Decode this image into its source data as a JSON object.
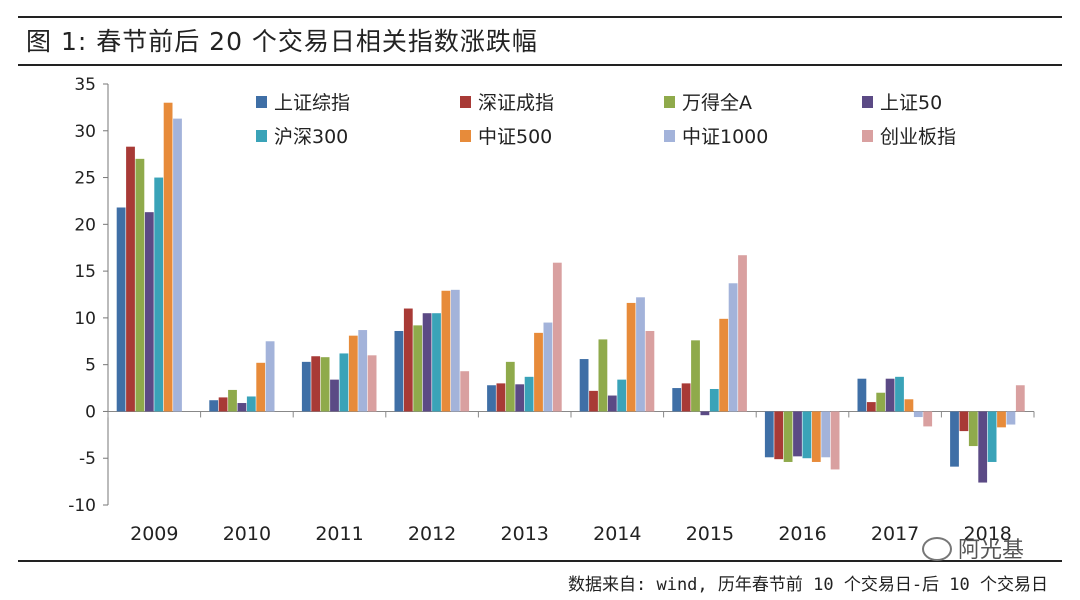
{
  "header": {
    "title": "图 1: 春节前后 20 个交易日相关指数涨跌幅"
  },
  "footer": {
    "source": "数据来自: wind, 历年春节前 10 个交易日-后 10 个交易日",
    "watermark": "阿光基"
  },
  "chart_data": {
    "type": "bar",
    "title": "",
    "xlabel": "",
    "ylabel": "",
    "ylim": [
      -10,
      35
    ],
    "yticks": [
      -10,
      -5,
      0,
      5,
      10,
      15,
      20,
      25,
      30,
      35
    ],
    "grid": false,
    "legend_position": "top-center",
    "categories": [
      "2009",
      "2010",
      "2011",
      "2012",
      "2013",
      "2014",
      "2015",
      "2016",
      "2017",
      "2018"
    ],
    "series": [
      {
        "name": "上证综指",
        "color": "#3f6fa6",
        "values": [
          21.8,
          1.2,
          5.3,
          8.6,
          2.8,
          5.6,
          2.5,
          -4.9,
          3.5,
          -5.9
        ]
      },
      {
        "name": "深证成指",
        "color": "#a83a36",
        "values": [
          28.3,
          1.5,
          5.9,
          11.0,
          3.0,
          2.2,
          3.0,
          -5.1,
          1.0,
          -2.1
        ]
      },
      {
        "name": "万得全A",
        "color": "#8faa4b",
        "values": [
          27.0,
          2.3,
          5.8,
          9.2,
          5.3,
          7.7,
          7.6,
          -5.4,
          2.0,
          -3.7
        ]
      },
      {
        "name": "上证50",
        "color": "#5b4a85",
        "values": [
          21.3,
          0.9,
          3.4,
          10.5,
          2.9,
          1.7,
          -0.4,
          -4.8,
          3.5,
          -7.6
        ]
      },
      {
        "name": "沪深300",
        "color": "#3aa3b8",
        "values": [
          25.0,
          1.6,
          6.2,
          10.5,
          3.7,
          3.4,
          2.4,
          -5.0,
          3.7,
          -5.4
        ]
      },
      {
        "name": "中证500",
        "color": "#e78b3a",
        "values": [
          33.0,
          5.2,
          8.1,
          12.9,
          8.4,
          11.6,
          9.9,
          -5.4,
          1.3,
          -1.7
        ]
      },
      {
        "name": "中证1000",
        "color": "#a3b3da",
        "values": [
          31.3,
          7.5,
          8.7,
          13.0,
          9.5,
          12.2,
          13.7,
          -4.9,
          -0.6,
          -1.4
        ]
      },
      {
        "name": "创业板指",
        "color": "#d9a0a0",
        "values": [
          0,
          0,
          6.0,
          4.3,
          15.9,
          8.6,
          16.7,
          -6.2,
          -1.6,
          2.8
        ]
      }
    ]
  }
}
